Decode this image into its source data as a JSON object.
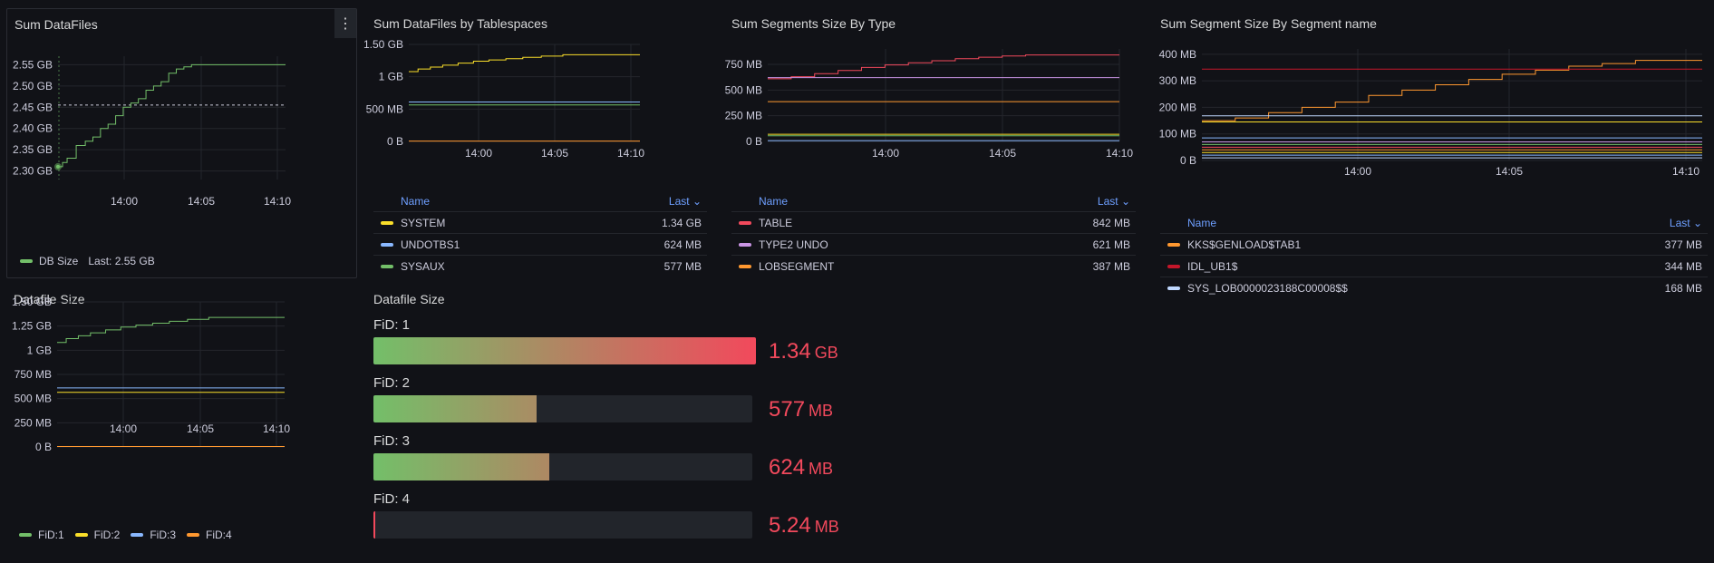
{
  "colors": {
    "green": "#73bf69",
    "yellow": "#fade2a",
    "blue": "#8ab8ff",
    "orange": "#ff9830",
    "red": "#f2495c",
    "purple": "#ca95e5",
    "darkred": "#c4162a",
    "lightblue": "#c0d8ff",
    "header": "#6e9fff"
  },
  "panels": {
    "sum_datafiles": {
      "title": "Sum DataFiles",
      "menu_icon": "⋮",
      "legend": {
        "name": "DB Size",
        "last": "Last: 2.55 GB"
      }
    },
    "tablespaces": {
      "title": "Sum DataFiles by Tablespaces",
      "table_header": {
        "name": "Name",
        "last": "Last"
      },
      "rows": [
        {
          "name": "SYSTEM",
          "value": "1.34 GB",
          "color": "#fade2a"
        },
        {
          "name": "UNDOTBS1",
          "value": "624 MB",
          "color": "#8ab8ff"
        },
        {
          "name": "SYSAUX",
          "value": "577 MB",
          "color": "#73bf69"
        }
      ]
    },
    "segments_type": {
      "title": "Sum Segments Size By Type",
      "table_header": {
        "name": "Name",
        "last": "Last"
      },
      "rows": [
        {
          "name": "TABLE",
          "value": "842 MB",
          "color": "#f2495c"
        },
        {
          "name": "TYPE2 UNDO",
          "value": "621 MB",
          "color": "#ca95e5"
        },
        {
          "name": "LOBSEGMENT",
          "value": "387 MB",
          "color": "#ff9830"
        }
      ]
    },
    "segments_name": {
      "title": "Sum Segment Size By Segment name",
      "table_header": {
        "name": "Name",
        "last": "Last"
      },
      "rows": [
        {
          "name": "KKS$GENLOAD$TAB1",
          "value": "377 MB",
          "color": "#ff9830"
        },
        {
          "name": "IDL_UB1$",
          "value": "344 MB",
          "color": "#c4162a"
        },
        {
          "name": "SYS_LOB0000023188C00008$$",
          "value": "168 MB",
          "color": "#c0d8ff"
        }
      ]
    },
    "datafile_size_graph": {
      "title": "Datafile Size",
      "legend": [
        {
          "name": "FiD:1",
          "color": "#73bf69"
        },
        {
          "name": "FiD:2",
          "color": "#fade2a"
        },
        {
          "name": "FiD:3",
          "color": "#8ab8ff"
        },
        {
          "name": "FiD:4",
          "color": "#ff9830"
        }
      ]
    },
    "datafile_size_gauge": {
      "title": "Datafile Size",
      "bars": [
        {
          "label": "FiD: 1",
          "value": "1.34",
          "unit": "GB",
          "fraction": 1.0
        },
        {
          "label": "FiD: 2",
          "value": "577",
          "unit": "MB",
          "fraction": 0.43
        },
        {
          "label": "FiD: 3",
          "value": "624",
          "unit": "MB",
          "fraction": 0.465
        },
        {
          "label": "FiD: 4",
          "value": "5.24",
          "unit": "MB",
          "fraction": 0.004
        }
      ]
    }
  },
  "chart_data": [
    {
      "type": "line",
      "id": "sum_datafiles",
      "title": "Sum DataFiles",
      "x_ticks": [
        "14:00",
        "14:05",
        "14:10"
      ],
      "y_ticks": [
        "2.30 GB",
        "2.35 GB",
        "2.40 GB",
        "2.45 GB",
        "2.50 GB",
        "2.55 GB"
      ],
      "ylim": [
        2.28,
        2.57
      ],
      "xlim": [
        0,
        15
      ],
      "threshold": 2.455,
      "series": [
        {
          "name": "DB Size",
          "color": "#73bf69",
          "step": true,
          "x": [
            0,
            0.3,
            0.6,
            1.2,
            1.8,
            2.3,
            2.8,
            3.3,
            3.8,
            4.3,
            4.8,
            5.3,
            5.8,
            6.3,
            6.8,
            7.3,
            7.8,
            8.3,
            8.8,
            15
          ],
          "y": [
            2.31,
            2.32,
            2.33,
            2.36,
            2.37,
            2.38,
            2.4,
            2.41,
            2.43,
            2.45,
            2.46,
            2.47,
            2.49,
            2.5,
            2.51,
            2.53,
            2.54,
            2.545,
            2.55,
            2.55
          ]
        }
      ]
    },
    {
      "type": "line",
      "id": "tablespaces",
      "title": "Sum DataFiles by Tablespaces",
      "x_ticks": [
        "14:00",
        "14:05",
        "14:10"
      ],
      "y_ticks": [
        "0 B",
        "500 MB",
        "1 GB",
        "1.50 GB"
      ],
      "ylim": [
        0,
        1.5
      ],
      "xlim": [
        0,
        15
      ],
      "series": [
        {
          "name": "SYSTEM",
          "color": "#fade2a",
          "step": true,
          "x": [
            0,
            0.6,
            1.4,
            2.2,
            3.2,
            4.2,
            5.2,
            6.3,
            7.4,
            8.6,
            10,
            15
          ],
          "y": [
            1.08,
            1.12,
            1.15,
            1.18,
            1.21,
            1.24,
            1.26,
            1.28,
            1.3,
            1.32,
            1.34,
            1.34
          ]
        },
        {
          "name": "UNDOTBS1",
          "color": "#8ab8ff",
          "x": [
            0,
            15
          ],
          "y": [
            0.61,
            0.61
          ]
        },
        {
          "name": "SYSAUX",
          "color": "#73bf69",
          "x": [
            0,
            15
          ],
          "y": [
            0.565,
            0.565
          ]
        },
        {
          "name": "",
          "color": "#ff9830",
          "x": [
            0,
            15
          ],
          "y": [
            0.005,
            0.005
          ]
        }
      ]
    },
    {
      "type": "line",
      "id": "segments_type",
      "title": "Sum Segments Size By Type",
      "x_ticks": [
        "14:00",
        "14:05",
        "14:10"
      ],
      "y_ticks": [
        "0 B",
        "250 MB",
        "500 MB",
        "750 MB"
      ],
      "ylim": [
        0,
        900
      ],
      "xlim": [
        0,
        15
      ],
      "series": [
        {
          "name": "TABLE",
          "color": "#f2495c",
          "step": true,
          "x": [
            0,
            1,
            2,
            3,
            4,
            5,
            6,
            7,
            8,
            9,
            10,
            11,
            15
          ],
          "y": [
            610,
            630,
            660,
            690,
            720,
            745,
            765,
            785,
            805,
            820,
            832,
            842,
            842
          ]
        },
        {
          "name": "TYPE2 UNDO",
          "color": "#ca95e5",
          "x": [
            0,
            15
          ],
          "y": [
            621,
            621
          ]
        },
        {
          "name": "LOBSEGMENT",
          "color": "#ff9830",
          "x": [
            0,
            15
          ],
          "y": [
            387,
            387
          ]
        },
        {
          "name": "",
          "color": "#fade2a",
          "x": [
            0,
            15
          ],
          "y": [
            70,
            70
          ]
        },
        {
          "name": "",
          "color": "#73bf69",
          "x": [
            0,
            15
          ],
          "y": [
            55,
            55
          ]
        },
        {
          "name": "",
          "color": "#8ab8ff",
          "x": [
            0,
            15
          ],
          "y": [
            8,
            8
          ]
        }
      ]
    },
    {
      "type": "line",
      "id": "segments_name",
      "title": "Sum Segment Size By Segment name",
      "x_ticks": [
        "14:00",
        "14:05",
        "14:10"
      ],
      "y_ticks": [
        "0 B",
        "100 MB",
        "200 MB",
        "300 MB",
        "400 MB"
      ],
      "ylim": [
        0,
        420
      ],
      "xlim": [
        0,
        15
      ],
      "series": [
        {
          "name": "KKS$GENLOAD$TAB1",
          "color": "#ff9830",
          "step": true,
          "x": [
            0,
            1,
            2,
            3,
            4,
            5,
            6,
            7,
            8,
            9,
            10,
            11,
            12,
            13,
            15
          ],
          "y": [
            150,
            160,
            180,
            200,
            220,
            245,
            265,
            285,
            305,
            325,
            340,
            355,
            365,
            377,
            377
          ]
        },
        {
          "name": "IDL_UB1$",
          "color": "#c4162a",
          "x": [
            0,
            15
          ],
          "y": [
            344,
            344
          ]
        },
        {
          "name": "SYS_LOB0000023188C00008$$",
          "color": "#c0d8ff",
          "x": [
            0,
            15
          ],
          "y": [
            168,
            168
          ]
        },
        {
          "name": "",
          "color": "#fade2a",
          "x": [
            0,
            15
          ],
          "y": [
            145,
            145
          ]
        },
        {
          "name": "",
          "color": "#8ab8ff",
          "x": [
            0,
            15
          ],
          "y": [
            85,
            85
          ]
        },
        {
          "name": "",
          "color": "#ca95e5",
          "x": [
            0,
            15
          ],
          "y": [
            70,
            70
          ]
        },
        {
          "name": "",
          "color": "#73bf69",
          "x": [
            0,
            15
          ],
          "y": [
            60,
            60
          ]
        },
        {
          "name": "",
          "color": "#f2495c",
          "x": [
            0,
            15
          ],
          "y": [
            50,
            50
          ]
        },
        {
          "name": "",
          "color": "#ff9830",
          "x": [
            0,
            15
          ],
          "y": [
            40,
            40
          ]
        },
        {
          "name": "",
          "color": "#fade2a",
          "x": [
            0,
            15
          ],
          "y": [
            30,
            30
          ]
        },
        {
          "name": "",
          "color": "#8ab8ff",
          "x": [
            0,
            15
          ],
          "y": [
            20,
            20
          ]
        },
        {
          "name": "",
          "color": "#c0d8ff",
          "x": [
            0,
            15
          ],
          "y": [
            10,
            10
          ]
        }
      ]
    },
    {
      "type": "line",
      "id": "datafile_size",
      "title": "Datafile Size",
      "x_ticks": [
        "14:00",
        "14:05",
        "14:10"
      ],
      "y_ticks": [
        "0 B",
        "250 MB",
        "500 MB",
        "750 MB",
        "1 GB",
        "1.25 GB",
        "1.50 GB"
      ],
      "ylim": [
        0,
        1.5
      ],
      "xlim": [
        0,
        15
      ],
      "series": [
        {
          "name": "FiD:1",
          "color": "#73bf69",
          "step": true,
          "x": [
            0,
            0.6,
            1.4,
            2.2,
            3.2,
            4.2,
            5.2,
            6.3,
            7.4,
            8.6,
            10,
            15
          ],
          "y": [
            1.08,
            1.12,
            1.15,
            1.18,
            1.21,
            1.24,
            1.26,
            1.28,
            1.3,
            1.32,
            1.34,
            1.34
          ]
        },
        {
          "name": "FiD:2",
          "color": "#fade2a",
          "x": [
            0,
            15
          ],
          "y": [
            0.565,
            0.565
          ]
        },
        {
          "name": "FiD:3",
          "color": "#8ab8ff",
          "x": [
            0,
            15
          ],
          "y": [
            0.61,
            0.61
          ]
        },
        {
          "name": "FiD:4",
          "color": "#ff9830",
          "x": [
            0,
            15
          ],
          "y": [
            0.005,
            0.005
          ]
        }
      ]
    }
  ]
}
